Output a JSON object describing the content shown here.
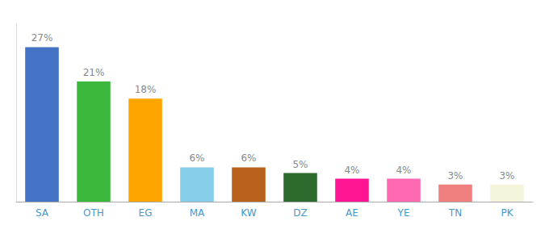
{
  "chart_data": {
    "type": "bar",
    "categories": [
      "SA",
      "OTH",
      "EG",
      "MA",
      "KW",
      "DZ",
      "AE",
      "YE",
      "TN",
      "PK"
    ],
    "values": [
      27,
      21,
      18,
      6,
      6,
      5,
      4,
      4,
      3,
      3
    ],
    "value_labels": [
      "27%",
      "21%",
      "18%",
      "6%",
      "6%",
      "5%",
      "4%",
      "4%",
      "3%",
      "3%"
    ],
    "colors": [
      "#4472c4",
      "#3cb93c",
      "#ffa500",
      "#87ceeb",
      "#b8621b",
      "#2d6a2d",
      "#ff1493",
      "#ff69b4",
      "#f08080",
      "#f5f5dc"
    ],
    "ylim": [
      0,
      31
    ],
    "data_labels": true,
    "tick_labels": "x",
    "grid": false
  }
}
